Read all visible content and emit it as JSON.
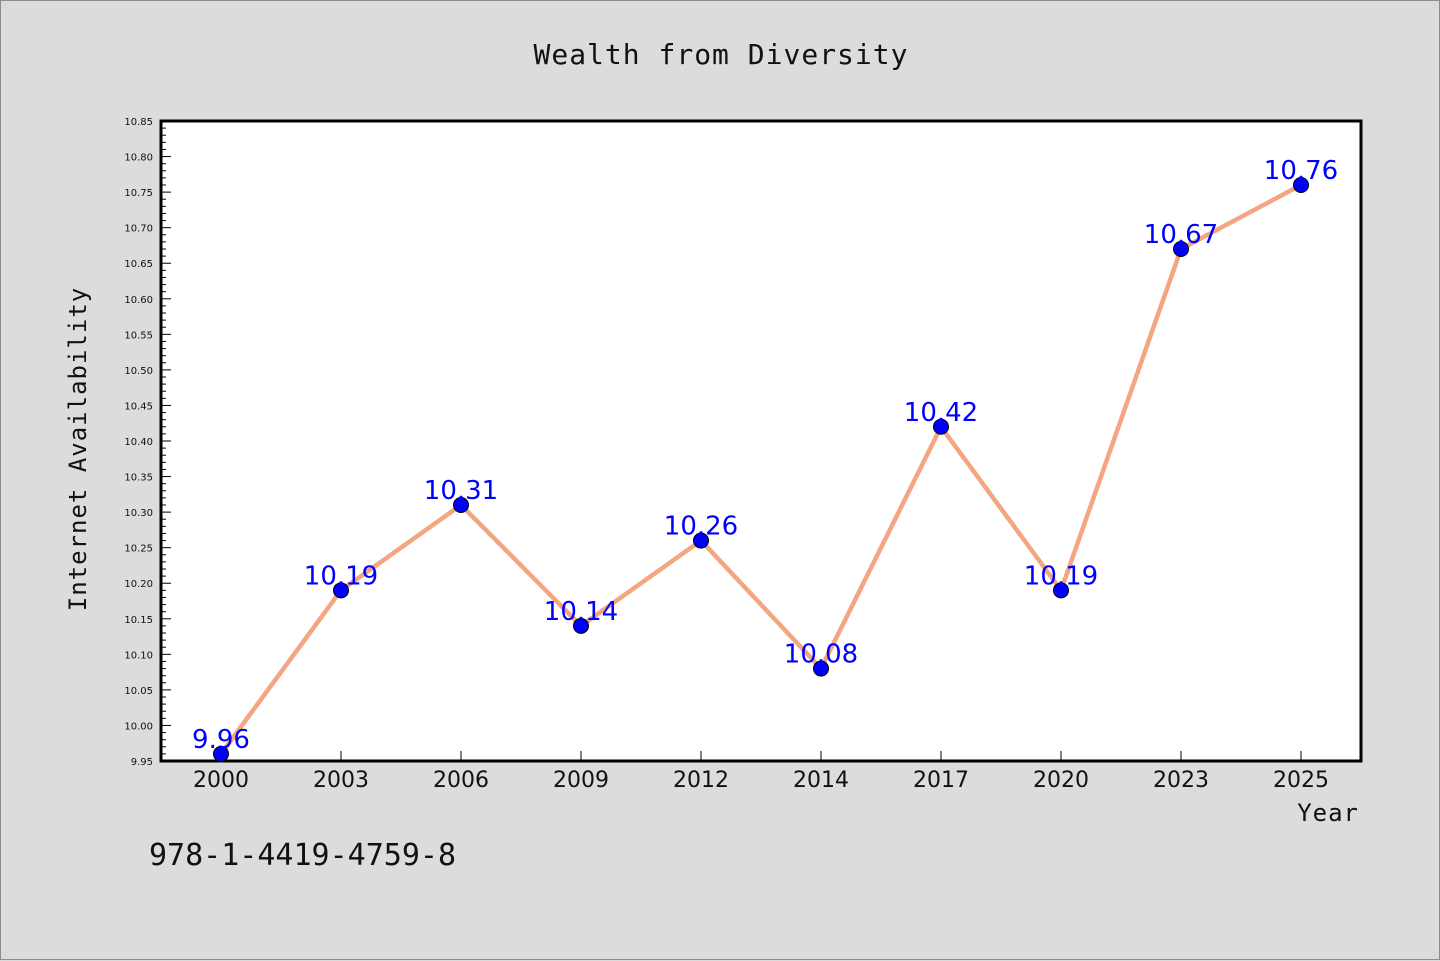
{
  "chart_data": {
    "type": "line",
    "title": "Wealth from Diversity",
    "xlabel": "Year",
    "ylabel": "Internet Availability",
    "categories": [
      "2000",
      "2003",
      "2006",
      "2009",
      "2012",
      "2014",
      "2017",
      "2020",
      "2023",
      "2025"
    ],
    "series": [
      {
        "values": [
          9.96,
          10.19,
          10.31,
          10.14,
          10.26,
          10.08,
          10.42,
          10.19,
          10.67,
          10.76
        ],
        "data_labels": [
          "9.96",
          "10.19",
          "10.31",
          "10.14",
          "10.26",
          "10.08",
          "10.42",
          "10.19",
          "10.67",
          "10.76"
        ],
        "line_color": "#f4a582",
        "marker_color": "#0000ff"
      }
    ],
    "ylim": [
      9.95,
      10.85
    ],
    "yticks": [
      "9.95",
      "10.00",
      "10.05",
      "10.10",
      "10.15",
      "10.20",
      "10.25",
      "10.30",
      "10.35",
      "10.40",
      "10.45",
      "10.50",
      "10.55",
      "10.60",
      "10.65",
      "10.70",
      "10.75",
      "10.80",
      "10.85"
    ],
    "grid": false,
    "legend": "none"
  },
  "annotation": "978-1-4419-4759-8",
  "colors": {
    "background": "#dcdcdc",
    "plot_background": "#ffffff",
    "line": "#f4a582",
    "marker": "#0000ff",
    "data_label": "#0000ff"
  }
}
